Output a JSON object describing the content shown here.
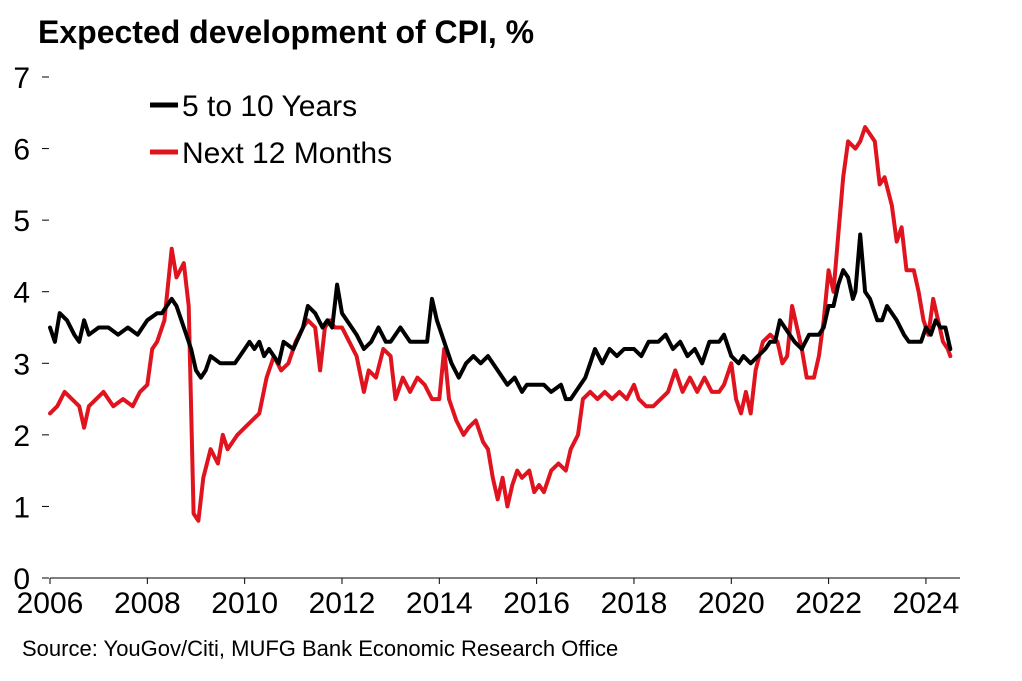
{
  "title": "Expected development of CPI, %",
  "source": "Source: YouGov/Citi, MUFG Bank Economic Research Office",
  "chart_data": {
    "type": "line",
    "title": "Expected development of CPI, %",
    "xlabel": "",
    "ylabel": "",
    "xlim": [
      2006.0,
      2024.7
    ],
    "ylim": [
      0,
      7
    ],
    "yticks": [
      0,
      1,
      2,
      3,
      4,
      5,
      6,
      7
    ],
    "xticks": [
      2006,
      2008,
      2010,
      2012,
      2014,
      2016,
      2018,
      2020,
      2022,
      2024
    ],
    "grid": false,
    "legend_position": "top-left",
    "series": [
      {
        "name": "5 to 10 Years",
        "color": "#000000",
        "points": [
          [
            2006.0,
            3.5
          ],
          [
            2006.1,
            3.3
          ],
          [
            2006.2,
            3.7
          ],
          [
            2006.35,
            3.6
          ],
          [
            2006.5,
            3.4
          ],
          [
            2006.6,
            3.3
          ],
          [
            2006.7,
            3.6
          ],
          [
            2006.8,
            3.4
          ],
          [
            2007.0,
            3.5
          ],
          [
            2007.2,
            3.5
          ],
          [
            2007.4,
            3.4
          ],
          [
            2007.6,
            3.5
          ],
          [
            2007.8,
            3.4
          ],
          [
            2008.0,
            3.6
          ],
          [
            2008.2,
            3.7
          ],
          [
            2008.3,
            3.7
          ],
          [
            2008.4,
            3.8
          ],
          [
            2008.5,
            3.9
          ],
          [
            2008.6,
            3.8
          ],
          [
            2008.7,
            3.6
          ],
          [
            2008.8,
            3.4
          ],
          [
            2008.9,
            3.2
          ],
          [
            2009.0,
            2.9
          ],
          [
            2009.1,
            2.8
          ],
          [
            2009.2,
            2.9
          ],
          [
            2009.3,
            3.1
          ],
          [
            2009.5,
            3.0
          ],
          [
            2009.7,
            3.0
          ],
          [
            2009.8,
            3.0
          ],
          [
            2010.0,
            3.2
          ],
          [
            2010.1,
            3.3
          ],
          [
            2010.2,
            3.2
          ],
          [
            2010.3,
            3.3
          ],
          [
            2010.4,
            3.1
          ],
          [
            2010.5,
            3.2
          ],
          [
            2010.7,
            3.0
          ],
          [
            2010.8,
            3.3
          ],
          [
            2011.0,
            3.2
          ],
          [
            2011.2,
            3.5
          ],
          [
            2011.3,
            3.8
          ],
          [
            2011.45,
            3.7
          ],
          [
            2011.6,
            3.5
          ],
          [
            2011.7,
            3.6
          ],
          [
            2011.8,
            3.5
          ],
          [
            2011.9,
            4.1
          ],
          [
            2012.0,
            3.7
          ],
          [
            2012.2,
            3.5
          ],
          [
            2012.3,
            3.4
          ],
          [
            2012.45,
            3.2
          ],
          [
            2012.6,
            3.3
          ],
          [
            2012.75,
            3.5
          ],
          [
            2012.9,
            3.3
          ],
          [
            2013.0,
            3.3
          ],
          [
            2013.2,
            3.5
          ],
          [
            2013.4,
            3.3
          ],
          [
            2013.6,
            3.3
          ],
          [
            2013.75,
            3.3
          ],
          [
            2013.85,
            3.9
          ],
          [
            2013.95,
            3.6
          ],
          [
            2014.1,
            3.3
          ],
          [
            2014.25,
            3.0
          ],
          [
            2014.4,
            2.8
          ],
          [
            2014.55,
            3.0
          ],
          [
            2014.7,
            3.1
          ],
          [
            2014.85,
            3.0
          ],
          [
            2015.0,
            3.1
          ],
          [
            2015.2,
            2.9
          ],
          [
            2015.4,
            2.7
          ],
          [
            2015.55,
            2.8
          ],
          [
            2015.7,
            2.6
          ],
          [
            2015.8,
            2.7
          ],
          [
            2016.0,
            2.7
          ],
          [
            2016.15,
            2.7
          ],
          [
            2016.3,
            2.6
          ],
          [
            2016.5,
            2.7
          ],
          [
            2016.6,
            2.5
          ],
          [
            2016.7,
            2.5
          ],
          [
            2016.8,
            2.6
          ],
          [
            2017.0,
            2.8
          ],
          [
            2017.1,
            3.0
          ],
          [
            2017.2,
            3.2
          ],
          [
            2017.35,
            3.0
          ],
          [
            2017.5,
            3.2
          ],
          [
            2017.65,
            3.1
          ],
          [
            2017.8,
            3.2
          ],
          [
            2018.0,
            3.2
          ],
          [
            2018.15,
            3.1
          ],
          [
            2018.3,
            3.3
          ],
          [
            2018.5,
            3.3
          ],
          [
            2018.65,
            3.4
          ],
          [
            2018.8,
            3.2
          ],
          [
            2018.95,
            3.3
          ],
          [
            2019.1,
            3.1
          ],
          [
            2019.25,
            3.2
          ],
          [
            2019.4,
            3.0
          ],
          [
            2019.55,
            3.3
          ],
          [
            2019.75,
            3.3
          ],
          [
            2019.85,
            3.4
          ],
          [
            2020.0,
            3.1
          ],
          [
            2020.15,
            3.0
          ],
          [
            2020.25,
            3.1
          ],
          [
            2020.4,
            3.0
          ],
          [
            2020.55,
            3.1
          ],
          [
            2020.7,
            3.2
          ],
          [
            2020.8,
            3.3
          ],
          [
            2020.9,
            3.3
          ],
          [
            2021.0,
            3.6
          ],
          [
            2021.1,
            3.5
          ],
          [
            2021.3,
            3.3
          ],
          [
            2021.45,
            3.2
          ],
          [
            2021.6,
            3.4
          ],
          [
            2021.8,
            3.4
          ],
          [
            2021.9,
            3.5
          ],
          [
            2022.0,
            3.8
          ],
          [
            2022.1,
            3.8
          ],
          [
            2022.2,
            4.1
          ],
          [
            2022.3,
            4.3
          ],
          [
            2022.4,
            4.2
          ],
          [
            2022.5,
            3.9
          ],
          [
            2022.55,
            4.0
          ],
          [
            2022.65,
            4.8
          ],
          [
            2022.75,
            4.0
          ],
          [
            2022.85,
            3.9
          ],
          [
            2023.0,
            3.6
          ],
          [
            2023.1,
            3.6
          ],
          [
            2023.2,
            3.8
          ],
          [
            2023.3,
            3.7
          ],
          [
            2023.4,
            3.6
          ],
          [
            2023.55,
            3.4
          ],
          [
            2023.65,
            3.3
          ],
          [
            2023.8,
            3.3
          ],
          [
            2023.9,
            3.3
          ],
          [
            2024.0,
            3.5
          ],
          [
            2024.1,
            3.4
          ],
          [
            2024.2,
            3.6
          ],
          [
            2024.3,
            3.5
          ],
          [
            2024.4,
            3.5
          ],
          [
            2024.5,
            3.2
          ]
        ]
      },
      {
        "name": "Next 12 Months",
        "color": "#e0141e",
        "points": [
          [
            2006.0,
            2.3
          ],
          [
            2006.15,
            2.4
          ],
          [
            2006.3,
            2.6
          ],
          [
            2006.45,
            2.5
          ],
          [
            2006.6,
            2.4
          ],
          [
            2006.7,
            2.1
          ],
          [
            2006.8,
            2.4
          ],
          [
            2006.95,
            2.5
          ],
          [
            2007.1,
            2.6
          ],
          [
            2007.2,
            2.5
          ],
          [
            2007.3,
            2.4
          ],
          [
            2007.5,
            2.5
          ],
          [
            2007.7,
            2.4
          ],
          [
            2007.85,
            2.6
          ],
          [
            2008.0,
            2.7
          ],
          [
            2008.1,
            3.2
          ],
          [
            2008.2,
            3.3
          ],
          [
            2008.35,
            3.6
          ],
          [
            2008.5,
            4.6
          ],
          [
            2008.6,
            4.2
          ],
          [
            2008.75,
            4.4
          ],
          [
            2008.85,
            3.8
          ],
          [
            2008.95,
            0.9
          ],
          [
            2009.05,
            0.8
          ],
          [
            2009.15,
            1.4
          ],
          [
            2009.3,
            1.8
          ],
          [
            2009.45,
            1.6
          ],
          [
            2009.55,
            2.0
          ],
          [
            2009.65,
            1.8
          ],
          [
            2009.85,
            2.0
          ],
          [
            2010.0,
            2.1
          ],
          [
            2010.15,
            2.2
          ],
          [
            2010.3,
            2.3
          ],
          [
            2010.45,
            2.8
          ],
          [
            2010.6,
            3.1
          ],
          [
            2010.75,
            2.9
          ],
          [
            2010.9,
            3.0
          ],
          [
            2011.05,
            3.3
          ],
          [
            2011.2,
            3.5
          ],
          [
            2011.3,
            3.6
          ],
          [
            2011.45,
            3.5
          ],
          [
            2011.55,
            2.9
          ],
          [
            2011.65,
            3.5
          ],
          [
            2011.75,
            3.6
          ],
          [
            2011.85,
            3.5
          ],
          [
            2012.0,
            3.5
          ],
          [
            2012.15,
            3.3
          ],
          [
            2012.3,
            3.1
          ],
          [
            2012.45,
            2.6
          ],
          [
            2012.55,
            2.9
          ],
          [
            2012.7,
            2.8
          ],
          [
            2012.85,
            3.2
          ],
          [
            2013.0,
            3.1
          ],
          [
            2013.1,
            2.5
          ],
          [
            2013.25,
            2.8
          ],
          [
            2013.4,
            2.6
          ],
          [
            2013.55,
            2.8
          ],
          [
            2013.7,
            2.7
          ],
          [
            2013.85,
            2.5
          ],
          [
            2014.0,
            2.5
          ],
          [
            2014.1,
            3.2
          ],
          [
            2014.2,
            2.5
          ],
          [
            2014.35,
            2.2
          ],
          [
            2014.5,
            2.0
          ],
          [
            2014.6,
            2.1
          ],
          [
            2014.75,
            2.2
          ],
          [
            2014.9,
            1.9
          ],
          [
            2015.0,
            1.8
          ],
          [
            2015.1,
            1.4
          ],
          [
            2015.2,
            1.1
          ],
          [
            2015.3,
            1.4
          ],
          [
            2015.4,
            1.0
          ],
          [
            2015.5,
            1.3
          ],
          [
            2015.6,
            1.5
          ],
          [
            2015.7,
            1.4
          ],
          [
            2015.85,
            1.5
          ],
          [
            2015.95,
            1.2
          ],
          [
            2016.05,
            1.3
          ],
          [
            2016.15,
            1.2
          ],
          [
            2016.3,
            1.5
          ],
          [
            2016.45,
            1.6
          ],
          [
            2016.6,
            1.5
          ],
          [
            2016.7,
            1.8
          ],
          [
            2016.85,
            2.0
          ],
          [
            2016.95,
            2.5
          ],
          [
            2017.1,
            2.6
          ],
          [
            2017.25,
            2.5
          ],
          [
            2017.4,
            2.6
          ],
          [
            2017.55,
            2.5
          ],
          [
            2017.7,
            2.6
          ],
          [
            2017.85,
            2.5
          ],
          [
            2018.0,
            2.7
          ],
          [
            2018.1,
            2.5
          ],
          [
            2018.25,
            2.4
          ],
          [
            2018.4,
            2.4
          ],
          [
            2018.55,
            2.5
          ],
          [
            2018.7,
            2.6
          ],
          [
            2018.85,
            2.9
          ],
          [
            2019.0,
            2.6
          ],
          [
            2019.15,
            2.8
          ],
          [
            2019.3,
            2.6
          ],
          [
            2019.45,
            2.8
          ],
          [
            2019.6,
            2.6
          ],
          [
            2019.75,
            2.6
          ],
          [
            2019.85,
            2.7
          ],
          [
            2020.0,
            3.0
          ],
          [
            2020.1,
            2.5
          ],
          [
            2020.2,
            2.3
          ],
          [
            2020.3,
            2.6
          ],
          [
            2020.4,
            2.3
          ],
          [
            2020.5,
            2.9
          ],
          [
            2020.65,
            3.3
          ],
          [
            2020.8,
            3.4
          ],
          [
            2020.95,
            3.3
          ],
          [
            2021.05,
            3.0
          ],
          [
            2021.15,
            3.1
          ],
          [
            2021.25,
            3.8
          ],
          [
            2021.35,
            3.5
          ],
          [
            2021.45,
            3.2
          ],
          [
            2021.55,
            2.8
          ],
          [
            2021.7,
            2.8
          ],
          [
            2021.8,
            3.1
          ],
          [
            2021.9,
            3.6
          ],
          [
            2022.0,
            4.3
          ],
          [
            2022.1,
            4.0
          ],
          [
            2022.2,
            4.8
          ],
          [
            2022.3,
            5.6
          ],
          [
            2022.4,
            6.1
          ],
          [
            2022.55,
            6.0
          ],
          [
            2022.65,
            6.1
          ],
          [
            2022.75,
            6.3
          ],
          [
            2022.85,
            6.2
          ],
          [
            2022.95,
            6.1
          ],
          [
            2023.05,
            5.5
          ],
          [
            2023.15,
            5.6
          ],
          [
            2023.3,
            5.2
          ],
          [
            2023.4,
            4.7
          ],
          [
            2023.5,
            4.9
          ],
          [
            2023.6,
            4.3
          ],
          [
            2023.75,
            4.3
          ],
          [
            2023.85,
            4.0
          ],
          [
            2023.95,
            3.6
          ],
          [
            2024.05,
            3.4
          ],
          [
            2024.15,
            3.9
          ],
          [
            2024.25,
            3.6
          ],
          [
            2024.35,
            3.3
          ],
          [
            2024.45,
            3.2
          ],
          [
            2024.5,
            3.1
          ]
        ]
      }
    ]
  }
}
